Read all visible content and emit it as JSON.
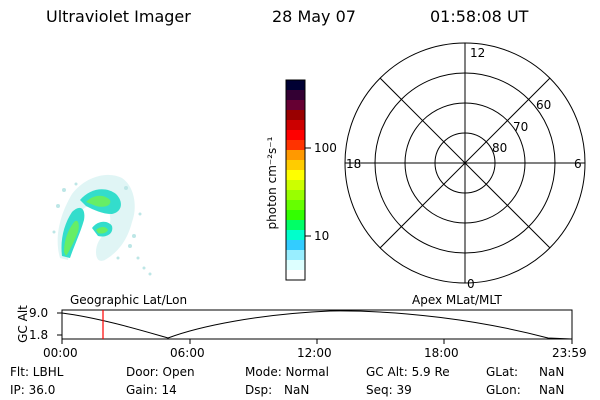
{
  "header": {
    "instrument": "Ultraviolet Imager",
    "date": "28 May 07",
    "time": "01:58:08 UT"
  },
  "colorbar": {
    "label": "photon cm⁻²s⁻¹",
    "ticks": [
      "100",
      "10"
    ],
    "colors": [
      "#000033",
      "#330033",
      "#660033",
      "#990000",
      "#cc0000",
      "#ff0000",
      "#ff3300",
      "#ff9900",
      "#ffcc00",
      "#ffff00",
      "#ccff00",
      "#99ff00",
      "#66ff00",
      "#33ff00",
      "#00ff66",
      "#00ffcc",
      "#33ccff",
      "#99eeff",
      "#ddffff",
      "#ffffff"
    ]
  },
  "polar_plot": {
    "mlt_labels": {
      "top": "12",
      "left": "18",
      "right": "6",
      "bottom": "0"
    },
    "lat_labels": [
      "60",
      "70",
      "80"
    ]
  },
  "map_labels": {
    "left": "Geographic Lat/Lon",
    "right": "Apex MLat/MLT"
  },
  "timeline": {
    "ylabel": "GC Alt",
    "y_ticks": [
      "9.0",
      "1.8"
    ],
    "x_ticks": [
      "00:00",
      "06:00",
      "12:00",
      "18:00",
      "23:59"
    ],
    "cursor_color": "#ff0000"
  },
  "status": {
    "flt": "Flt: LBHL",
    "door": "Door: Open",
    "mode": "Mode: Normal",
    "gc_alt": "GC Alt: 5.9 Re",
    "glat": "GLat:",
    "glat_val": "NaN",
    "ip": "IP: 36.0",
    "gain": "Gain: 14",
    "dsp": "Dsp:",
    "dsp_val": "NaN",
    "seq": "Seq: 39",
    "glon": "GLon:",
    "glon_val": "NaN"
  }
}
